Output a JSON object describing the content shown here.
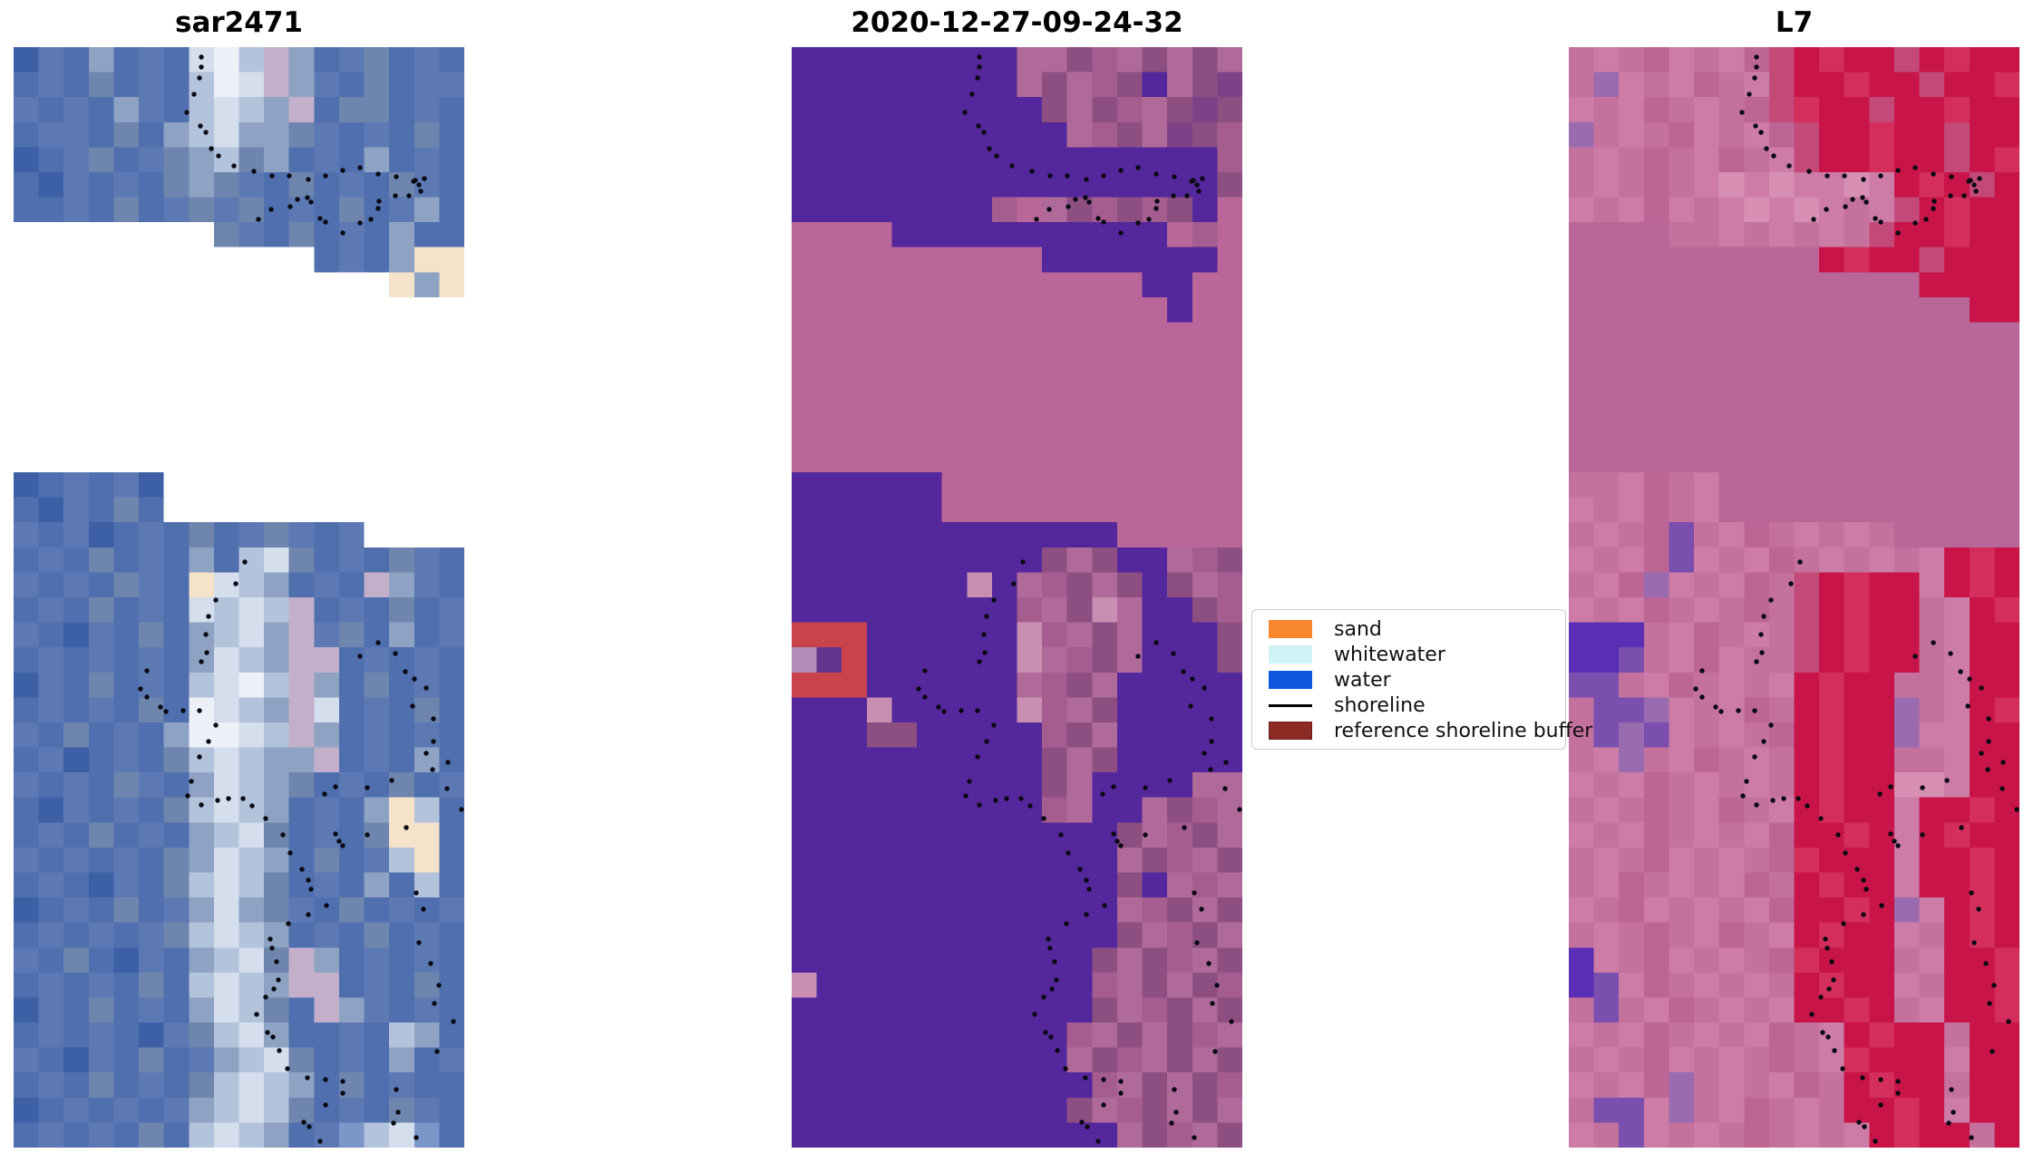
{
  "figure": {
    "background": "#ffffff",
    "description": "Three-panel satellite shoreline-detection figure: SAR image, classified image, and Landsat 7 image with mapped shoreline dots"
  },
  "legend": {
    "items": [
      {
        "label": "sand",
        "type": "patch",
        "color": "#f7862e",
        "edge": ""
      },
      {
        "label": "whitewater",
        "type": "patch",
        "color": "#cdf3f8",
        "edge": ""
      },
      {
        "label": "water",
        "type": "patch",
        "color": "#0e58e0",
        "edge": ""
      },
      {
        "label": "shoreline",
        "type": "line",
        "color": "#000000",
        "edge": ""
      },
      {
        "label": "reference shoreline buffer",
        "type": "patch",
        "color": "#8b2b24",
        "edge": "#6e1d18"
      }
    ]
  },
  "chart_data": {
    "type": "heatmap",
    "subtype": "satellite-image-subplots",
    "grid_size": {
      "cols": 18,
      "rows": 44
    },
    "shoreline_color": "#0a0a14",
    "panels": [
      {
        "title": "sar2471",
        "palette": {
          "a": "#3c5fa6",
          "b": "#4f6fae",
          "c": "#5c79b4",
          "d": "#6e86ad",
          "e": "#8ea3c4",
          "f": "#b3c3dc",
          "g": "#d4deed",
          "h": "#edf1f7",
          "i": "#c3afc9",
          "j": "#f4e2c9",
          "k": "#5d7494",
          "m": "#33549b",
          "n": "#7b96c9",
          "0": "#ffffff"
        },
        "grid": [
          "acbebcbghfiebcdbcb",
          "bcbdbcbfhgiecbdbcc",
          "cbcbecbfgfeibddbcb",
          "bccbdbefgeedcbcbdb",
          "abcdbcdefdebcbebcb",
          "bacbcbdedcbdbcbdcb",
          "bbcbdbcdcdbcbdbceb",
          "00000000dcbdbcbebb",
          "000000000000bcbejj",
          "000000000000000jej",
          "000000000000000000",
          "000000000000000000",
          "000000000000000000",
          "000000000000000000",
          "000000000000000000",
          "000000000000000000",
          "000000000000000000",
          "abcbca000000000000",
          "bacbdb000000000000",
          "cbcabcbdbcdcbc0000",
          "bcbdbcbebfgdbcbdcb",
          "cbcbdcbjgfebcbiecb",
          "bcbdbcbgfgfibcbdbc",
          "cbacbdbefgeicdbebc",
          "bcbcbcbegfeiibcbcb",
          "acbdbcbfghfiebdbcb",
          "bcbcbdbhgfeigbcbdb",
          "cbdbcbehhgfiebcbcb",
          "bcabcbdfgfeeibcbeb",
          "cbcbdcbegfedbcbdbc",
          "bacbcbdfgfebcbejfb",
          "bcbdbcbefgdbcbdjjb",
          "cbcbcbdegfebdbcfjb",
          "bcbacbdfgfdbcbebfb",
          "abcbdbcegedcbdbcbc",
          "bcbcbcdfgfebcbdbcb",
          "cbdbacbefgdiebcbcb",
          "bcbcbdbfgfeiibcbdb",
          "acbdbcbegfdbiecbcb",
          "bcbcbacdfgebbcbfeb",
          "cbacbdbcefgdbcbebc",
          "bcbdbcbdfgfebdbcbb",
          "abcbcbcefgfdbcbdcb",
          "bcbcbdbfgfebcnfgnb"
        ]
      },
      {
        "title": "2020-12-27-09-24-32",
        "palette": {
          "p": "#55279c",
          "q": "#b96698",
          "r": "#b06a9a",
          "s": "#8d4f82",
          "t": "#c98fb2",
          "u": "#7c4187",
          "v": "#a55d90",
          "R": "#c9434b",
          "L": "#b18cba",
          "D": "#64348c"
        },
        "grid": [
          "ppppppppprrsvrsrsr",
          "ppppppppprsrvsprsu",
          "ppppppppppsrsvrsus",
          "ppppppppppprvsrusv",
          "pppppppppppppppppv",
          "ppppppppppppppppps",
          "ppppppppvqrsvsvspq",
          "qqqqpppppppppppqvq",
          "qqqqqqqqqqpppppppq",
          "qqqqqqqqqqqqqqppqq",
          "qqqqqqqqqqqqqqqpqq",
          "qqqqqqqqqqqqqqqqqq",
          "qqqqqqqqqqqqqqqqqq",
          "qqqqqqqqqqqqqqqqqq",
          "qqqqqqqqqqqqqqqqqq",
          "qqqqqqqqqqqqqqqqqq",
          "qqqqqqqqqqqqqqqqqq",
          "ppppppqqqqqqqqqqqq",
          "ppppppqqqqqqqqqqqq",
          "pppppppppppppqqqqq",
          "ppppppppppsrspprvs",
          "ppppppptprvsrspsrv",
          "pppppppppvrstrppsv",
          "RRRpppppptvrsrppps",
          "LDRpppppptrvsrppps",
          "RRRpppppprvsrppppp",
          "ppptppppptvrsppppp",
          "pppsspppppvsrppppp",
          "ppppppppppsrsppppp",
          "ppppppppppsrpppprr",
          "ppppppppppvrpprsvr",
          "pppppppppppppsrvsr",
          "ppppppppppppprsvrs",
          "pppppppppppppsprvr",
          "ppppppppppppprvsrs",
          "pppppppppppppsrvsr",
          "ppppppppppppsrsvrs",
          "tpppppppppppvrsrsv",
          "ppppppppppppsrvsrs",
          "pppppppppppvrsrsvr",
          "ppppppppppprsvrsrs",
          "ppppppppppppvrsrsv",
          "pppppppppppsrvsrsr",
          "ppppppppppppprsvrs"
        ]
      },
      {
        "title": "L7",
        "palette": {
          "A": "#c4719e",
          "B": "#cc7ca7",
          "C": "#bd6595",
          "E": "#c81448",
          "F": "#d42e5c",
          "G": "#c34a78",
          "H": "#b96698",
          "I": "#5b2fb5",
          "J": "#7a4fae",
          "K": "#9a6bae",
          "M": "#d78fb4",
          "N": "#b05a86"
        },
        "grid": [
          "ABACBABCGEFEEGEFEE",
          "AKBABCABGEEFEEGEEF",
          "BABCABACGFEEGEEFEE",
          "KABACBABCGEEFEEGEE",
          "ABACABCABGEEFEEGEF",
          "ABACABMBMBBMBEFEGE",
          "BABCBABMBMBABGEFEE",
          "HHHHAABABABAGEEFEE",
          "HHHHHHHHHHEFEEGEEE",
          "HHHHHHHHHHHHHHEEEE",
          "HHHHHHHHHHHHHHHHEE",
          "HHHHHHHHHHHHHHHHHH",
          "HHHHHHHHHHHHHHHHHH",
          "HHHHHHHHHHHHHHHHHH",
          "HHHHHHHHHHHHHHHHHH",
          "HHHHHHHHHHHHHHHHHH",
          "HHHHHHHHHHHHHHHHHH",
          "AABCABHHHHHHHHHHHH",
          "BABCABHHHHHHHHHHHH",
          "ABACJABCABABAHHHHH",
          "BABCJBABCABABABEFE",
          "ABCKBABCAGEFEEBEFE",
          "BABCABACAGEFEEABEF",
          "IIIABCABAGEFEEABEE",
          "IIJABCBAAGEFEEABEE",
          "JJABCABABEFEEAABEE",
          "AJJKBABCAEFEEKABEF",
          "AJKJBABACEFEEKBBEE",
          "ABKABCABAEFEEAABEE",
          "BABCABABAEFEEMMBEE",
          "ABACABCABEFEEBEEFE",
          "BABCABABCEEFEBEFEE",
          "ABACBABACFEEEBEEFE",
          "ABCABABCAEFEEBEEFE",
          "BACBABABCEEFEKBEFE",
          "ABACABCABEFEEBAEFE",
          "IBACBABACFEEEABEEF",
          "IJBCABABAEFEEBAEEF",
          "AJABCABABEEFEABEEF",
          "BABCABABCABEFEEAEE",
          "ABACBABACABFEEEBEE",
          "BABCKABABCAEFEEAEE",
          "AJJBKABCABAEEFEBEE",
          "BAJBABACABABEFEEAE"
        ]
      }
    ],
    "shoreline_dots": [
      [
        207,
        11
      ],
      [
        207,
        22
      ],
      [
        205,
        34
      ],
      [
        199,
        52
      ],
      [
        191,
        72
      ],
      [
        206,
        87
      ],
      [
        212,
        94
      ],
      [
        218,
        112
      ],
      [
        226,
        120
      ],
      [
        243,
        131
      ],
      [
        265,
        137
      ],
      [
        285,
        142
      ],
      [
        304,
        142
      ],
      [
        325,
        146
      ],
      [
        344,
        142
      ],
      [
        363,
        136
      ],
      [
        382,
        133
      ],
      [
        402,
        140
      ],
      [
        422,
        143
      ],
      [
        441,
        148
      ],
      [
        447,
        152
      ],
      [
        443,
        147
      ],
      [
        453,
        145
      ],
      [
        313,
        168
      ],
      [
        305,
        176
      ],
      [
        324,
        166
      ],
      [
        328,
        171
      ],
      [
        284,
        179
      ],
      [
        270,
        190
      ],
      [
        338,
        189
      ],
      [
        344,
        193
      ],
      [
        363,
        205
      ],
      [
        382,
        194
      ],
      [
        394,
        190
      ],
      [
        402,
        178
      ],
      [
        403,
        170
      ],
      [
        421,
        164
      ],
      [
        436,
        164
      ],
      [
        449,
        159
      ],
      [
        255,
        568
      ],
      [
        245,
        592
      ],
      [
        223,
        610
      ],
      [
        215,
        628
      ],
      [
        212,
        648
      ],
      [
        213,
        668
      ],
      [
        207,
        678
      ],
      [
        147,
        688
      ],
      [
        140,
        708
      ],
      [
        147,
        717
      ],
      [
        162,
        728
      ],
      [
        168,
        733
      ],
      [
        187,
        732
      ],
      [
        205,
        732
      ],
      [
        223,
        748
      ],
      [
        215,
        766
      ],
      [
        205,
        783
      ],
      [
        196,
        810
      ],
      [
        192,
        826
      ],
      [
        207,
        836
      ],
      [
        225,
        831
      ],
      [
        237,
        829
      ],
      [
        253,
        829
      ],
      [
        263,
        837
      ],
      [
        278,
        851
      ],
      [
        297,
        869
      ],
      [
        305,
        889
      ],
      [
        318,
        907
      ],
      [
        325,
        919
      ],
      [
        328,
        929
      ],
      [
        345,
        947
      ],
      [
        325,
        957
      ],
      [
        303,
        967
      ],
      [
        283,
        984
      ],
      [
        285,
        994
      ],
      [
        290,
        1009
      ],
      [
        292,
        1029
      ],
      [
        287,
        1039
      ],
      [
        278,
        1048
      ],
      [
        268,
        1067
      ],
      [
        280,
        1087
      ],
      [
        286,
        1092
      ],
      [
        293,
        1107
      ],
      [
        302,
        1127
      ],
      [
        324,
        1137
      ],
      [
        344,
        1139
      ],
      [
        363,
        1141
      ],
      [
        363,
        1154
      ],
      [
        344,
        1167
      ],
      [
        320,
        1186
      ],
      [
        326,
        1191
      ],
      [
        338,
        1207
      ],
      [
        402,
        657
      ],
      [
        421,
        669
      ],
      [
        382,
        672
      ],
      [
        432,
        689
      ],
      [
        442,
        697
      ],
      [
        455,
        707
      ],
      [
        463,
        741
      ],
      [
        440,
        727
      ],
      [
        463,
        766
      ],
      [
        479,
        789
      ],
      [
        462,
        797
      ],
      [
        455,
        779
      ],
      [
        478,
        818
      ],
      [
        494,
        841
      ],
      [
        433,
        861
      ],
      [
        390,
        869
      ],
      [
        355,
        868
      ],
      [
        359,
        876
      ],
      [
        363,
        881
      ],
      [
        417,
        809
      ],
      [
        390,
        817
      ],
      [
        355,
        816
      ],
      [
        343,
        824
      ],
      [
        444,
        933
      ],
      [
        452,
        951
      ],
      [
        447,
        988
      ],
      [
        460,
        1011
      ],
      [
        469,
        1035
      ],
      [
        464,
        1055
      ],
      [
        485,
        1075
      ],
      [
        467,
        1108
      ],
      [
        422,
        1150
      ],
      [
        424,
        1175
      ],
      [
        419,
        1187
      ],
      [
        444,
        1203
      ]
    ]
  }
}
